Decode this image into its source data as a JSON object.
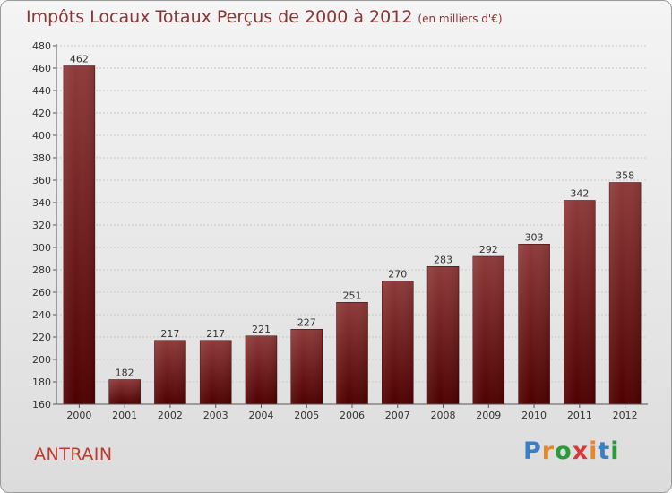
{
  "header": {
    "title": "Impôts Locaux Totaux Perçus de 2000 à 2012",
    "subtitle": "(en milliers d'€)"
  },
  "footer": {
    "commune": "ANTRAIN",
    "brand": "Proxiti",
    "brand_colors": [
      "#3a7fc4",
      "#e8862a",
      "#2a9a3a",
      "#d43a3a",
      "#e8862a",
      "#3a7fc4",
      "#2a9a3a"
    ]
  },
  "colors": {
    "bar_top": "#8e3a3a",
    "bar_bottom": "#4e0000",
    "title": "#8b3535",
    "commune": "#c0392b"
  },
  "chart_data": {
    "type": "bar",
    "categories": [
      "2000",
      "2001",
      "2002",
      "2003",
      "2004",
      "2005",
      "2006",
      "2007",
      "2008",
      "2009",
      "2010",
      "2011",
      "2012"
    ],
    "values": [
      462,
      182,
      217,
      217,
      221,
      227,
      251,
      270,
      283,
      292,
      303,
      342,
      358
    ],
    "ylim": [
      160,
      480
    ],
    "yticks": [
      160,
      180,
      200,
      220,
      240,
      260,
      280,
      300,
      320,
      340,
      360,
      380,
      400,
      420,
      440,
      460,
      480
    ],
    "grid": true
  }
}
